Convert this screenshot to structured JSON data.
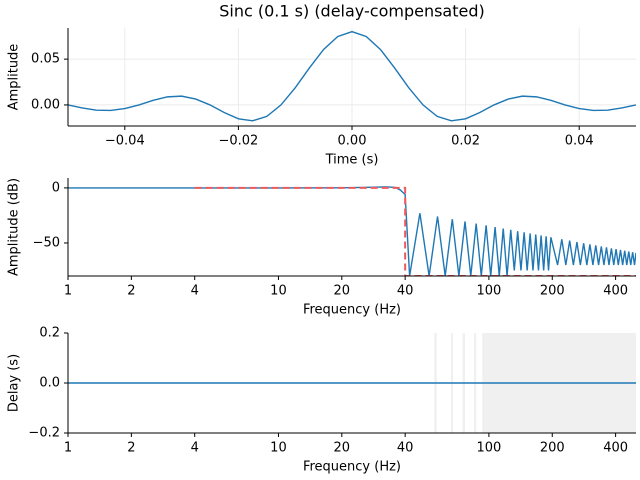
{
  "chart_data": [
    {
      "type": "line",
      "title": "Sinc (0.1 s) (delay-compensated)",
      "x_label": "Time (s)",
      "y_label": "Amplitude",
      "xlim": [
        -0.05,
        0.05
      ],
      "ylim": [
        -0.023,
        0.084
      ],
      "grid": true,
      "log_x": false,
      "xticks": [
        {
          "value": -0.04,
          "label": "−0.04"
        },
        {
          "value": -0.02,
          "label": "−0.02"
        },
        {
          "value": 0,
          "label": "0.00"
        },
        0.02,
        0.04
      ],
      "yticks": [
        {
          "value": 0,
          "label": "0.00"
        },
        0.05
      ],
      "series": [
        {
          "color": "#1f77b4",
          "linestyle": "solid",
          "x": [
            -0.05,
            -0.0475,
            -0.045,
            -0.0425,
            -0.04,
            -0.0375,
            -0.035,
            -0.0325,
            -0.03,
            -0.0275,
            -0.025,
            -0.0225,
            -0.02,
            -0.0175,
            -0.015,
            -0.0125,
            -0.01,
            -0.0075,
            -0.005,
            -0.0025,
            0,
            0.0025,
            0.005,
            0.0075,
            0.01,
            0.0125,
            0.015,
            0.0175,
            0.02,
            0.0225,
            0.025,
            0.0275,
            0.03,
            0.0325,
            0.035,
            0.0375,
            0.04,
            0.0425,
            0.045,
            0.0475,
            0.05
          ],
          "values": [
            0,
            -0.0033,
            -0.0057,
            -0.006,
            -0.004,
            0,
            0.005,
            0.0088,
            0.0096,
            0.0064,
            0,
            -0.0083,
            -0.0151,
            -0.0173,
            -0.0125,
            0,
            0.0187,
            0.0404,
            0.0606,
            0.0748,
            0.08,
            0.0748,
            0.0606,
            0.0404,
            0.0187,
            0,
            -0.0125,
            -0.0173,
            -0.0151,
            -0.0083,
            0,
            0.0064,
            0.0096,
            0.0088,
            0.005,
            0,
            -0.004,
            -0.006,
            -0.0057,
            -0.0033,
            0
          ]
        }
      ]
    },
    {
      "type": "line",
      "x_label": "Frequency (Hz)",
      "y_label": "Amplitude (dB)",
      "xlim": [
        1,
        500
      ],
      "ylim": [
        -80,
        9
      ],
      "grid": false,
      "log_x": true,
      "xticks": [
        1,
        2,
        4,
        10,
        20,
        40,
        100,
        200,
        400
      ],
      "yticks": [
        {
          "value": -50,
          "label": "−50"
        },
        0
      ],
      "series": [
        {
          "color": "#1f77b4",
          "linestyle": "solid",
          "x": [
            1,
            5,
            10,
            20,
            25,
            30,
            33,
            36,
            38,
            40,
            42,
            47,
            52,
            57,
            62,
            67,
            72,
            77,
            82,
            87,
            92,
            97,
            102,
            107,
            112,
            117,
            122,
            127,
            132,
            137,
            142,
            147,
            152,
            157,
            162,
            167,
            172,
            177,
            182,
            187,
            192,
            197,
            212,
            222,
            232,
            242,
            252,
            262,
            272,
            282,
            292,
            302,
            312,
            322,
            332,
            342,
            352,
            362,
            372,
            382,
            392,
            402,
            412,
            422,
            432,
            442,
            452,
            462,
            472,
            482,
            492,
            500
          ],
          "values": [
            0,
            0,
            0,
            0.1,
            0.4,
            0.8,
            0.9,
            0.4,
            -2,
            -6,
            -80,
            -23,
            -80,
            -25.9,
            -80,
            -28.4,
            -80,
            -30.5,
            -80,
            -32.4,
            -80,
            -34,
            -80,
            -35.5,
            -80,
            -36.9,
            -80,
            -38.1,
            -75,
            -39.3,
            -75,
            -40.3,
            -75,
            -41.3,
            -75,
            -42.3,
            -75,
            -43.2,
            -75,
            -44,
            -75,
            -44.8,
            -70,
            -46.6,
            -70,
            -47.9,
            -70,
            -49.1,
            -70,
            -50.2,
            -70,
            -51.3,
            -70,
            -52.2,
            -70,
            -53.2,
            -70,
            -54,
            -70,
            -54.9,
            -70,
            -55.6,
            -70,
            -56.4,
            -70,
            -57.1,
            -70,
            -57.7,
            -70,
            -58.4,
            -70,
            -59
          ]
        },
        {
          "color": "#ef5a5a",
          "linestyle": "dashed",
          "x": [
            4,
            40,
            40,
            500
          ],
          "values": [
            0,
            0,
            -80,
            -80
          ]
        }
      ]
    },
    {
      "type": "line",
      "x_label": "Frequency (Hz)",
      "y_label": "Delay (s)",
      "xlim": [
        1,
        500
      ],
      "ylim": [
        -0.2,
        0.2
      ],
      "grid": false,
      "log_x": true,
      "xticks": [
        1,
        2,
        4,
        10,
        20,
        40,
        100,
        200,
        400
      ],
      "yticks": [
        {
          "value": -0.2,
          "label": "−0.2"
        },
        {
          "value": 0,
          "label": "0.0"
        },
        0.2
      ],
      "spans": [
        [
          55,
          56.5
        ],
        [
          66,
          67.5
        ],
        [
          75,
          77
        ],
        [
          85,
          87
        ],
        [
          93,
          500
        ]
      ],
      "span_color": "#f0f0f0",
      "series": [
        {
          "color": "#1f77b4",
          "linestyle": "solid",
          "x": [
            1,
            500
          ],
          "values": [
            0,
            0
          ]
        }
      ]
    }
  ]
}
